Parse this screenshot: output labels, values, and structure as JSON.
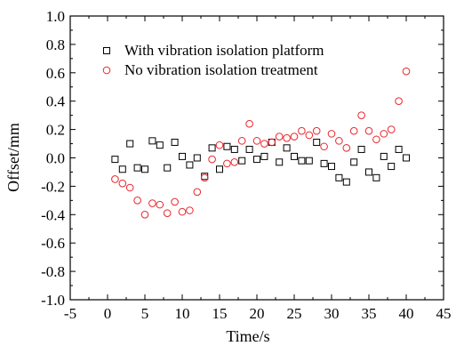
{
  "chart_data": {
    "type": "scatter",
    "xlabel": "Time/s",
    "ylabel": "Offset/mm",
    "xlim": [
      -5,
      45
    ],
    "ylim": [
      -1.0,
      1.0
    ],
    "xticks": [
      "-5",
      "0",
      "5",
      "10",
      "15",
      "20",
      "25",
      "30",
      "35",
      "40",
      "45"
    ],
    "yticks": [
      "-1.0",
      "-0.8",
      "-0.6",
      "-0.4",
      "-0.2",
      "0.0",
      "0.2",
      "0.4",
      "0.6",
      "0.8",
      "1.0"
    ],
    "xtick_values": [
      -5,
      0,
      5,
      10,
      15,
      20,
      25,
      30,
      35,
      40,
      45
    ],
    "ytick_values": [
      -1.0,
      -0.8,
      -0.6,
      -0.4,
      -0.2,
      0.0,
      0.2,
      0.4,
      0.6,
      0.8,
      1.0
    ],
    "grid": false,
    "legend": "top-left",
    "series": [
      {
        "name": "With vibration isolation platform",
        "marker": "square",
        "color": "#000000",
        "points": [
          [
            1,
            -0.01
          ],
          [
            2,
            -0.08
          ],
          [
            3,
            0.1
          ],
          [
            4,
            -0.07
          ],
          [
            5,
            -0.08
          ],
          [
            6,
            0.12
          ],
          [
            7,
            0.09
          ],
          [
            8,
            -0.07
          ],
          [
            9,
            0.11
          ],
          [
            10,
            0.01
          ],
          [
            11,
            -0.05
          ],
          [
            12,
            0.0
          ],
          [
            13,
            -0.13
          ],
          [
            14,
            0.07
          ],
          [
            15,
            -0.08
          ],
          [
            16,
            0.08
          ],
          [
            17,
            0.06
          ],
          [
            18,
            -0.02
          ],
          [
            19,
            0.06
          ],
          [
            20,
            -0.01
          ],
          [
            21,
            0.01
          ],
          [
            22,
            0.11
          ],
          [
            23,
            -0.03
          ],
          [
            24,
            0.07
          ],
          [
            25,
            0.01
          ],
          [
            26,
            -0.02
          ],
          [
            27,
            -0.02
          ],
          [
            28,
            0.11
          ],
          [
            29,
            -0.04
          ],
          [
            30,
            -0.06
          ],
          [
            31,
            -0.14
          ],
          [
            32,
            -0.17
          ],
          [
            33,
            -0.03
          ],
          [
            34,
            0.06
          ],
          [
            35,
            -0.1
          ],
          [
            36,
            -0.14
          ],
          [
            37,
            0.01
          ],
          [
            38,
            -0.06
          ],
          [
            39,
            0.06
          ],
          [
            40,
            0.0
          ]
        ]
      },
      {
        "name": "No vibration isolation treatment",
        "marker": "circle",
        "color": "#e8262c",
        "points": [
          [
            1,
            -0.15
          ],
          [
            2,
            -0.18
          ],
          [
            3,
            -0.21
          ],
          [
            4,
            -0.3
          ],
          [
            5,
            -0.4
          ],
          [
            6,
            -0.32
          ],
          [
            7,
            -0.33
          ],
          [
            8,
            -0.39
          ],
          [
            9,
            -0.31
          ],
          [
            10,
            -0.38
          ],
          [
            11,
            -0.37
          ],
          [
            12,
            -0.24
          ],
          [
            13,
            -0.14
          ],
          [
            14,
            -0.01
          ],
          [
            15,
            0.09
          ],
          [
            16,
            -0.04
          ],
          [
            17,
            -0.03
          ],
          [
            18,
            0.12
          ],
          [
            19,
            0.24
          ],
          [
            20,
            0.12
          ],
          [
            21,
            0.1
          ],
          [
            22,
            0.11
          ],
          [
            23,
            0.15
          ],
          [
            24,
            0.14
          ],
          [
            25,
            0.15
          ],
          [
            26,
            0.19
          ],
          [
            27,
            0.16
          ],
          [
            28,
            0.19
          ],
          [
            29,
            0.08
          ],
          [
            30,
            0.17
          ],
          [
            31,
            0.12
          ],
          [
            32,
            0.07
          ],
          [
            33,
            0.19
          ],
          [
            34,
            0.3
          ],
          [
            35,
            0.19
          ],
          [
            36,
            0.13
          ],
          [
            37,
            0.17
          ],
          [
            38,
            0.2
          ],
          [
            39,
            0.4
          ],
          [
            40,
            0.61
          ]
        ]
      }
    ]
  }
}
